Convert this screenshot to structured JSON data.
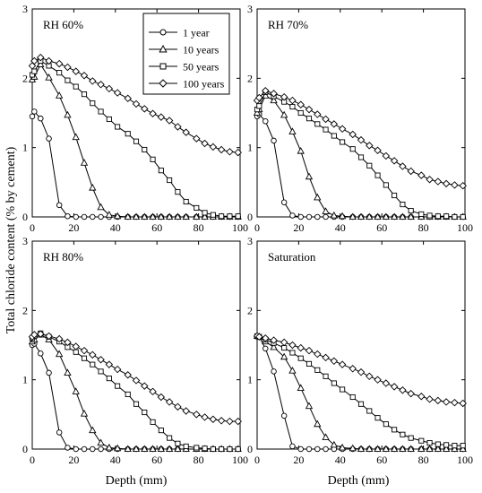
{
  "figure": {
    "ylabel": "Total chloride content (% by cement)",
    "xlabel": "Depth (mm)"
  },
  "legend": {
    "entries": [
      {
        "label": "1 year",
        "marker": "circle"
      },
      {
        "label": "10 years",
        "marker": "triangle"
      },
      {
        "label": "50 years",
        "marker": "square"
      },
      {
        "label": "100 years",
        "marker": "diamond"
      }
    ]
  },
  "chart_data": [
    {
      "type": "line",
      "title": "RH 60%",
      "xlabel": "Depth (mm)",
      "ylabel": "Total chloride content (% by cement)",
      "xlim": [
        0,
        100
      ],
      "ylim": [
        0,
        3
      ],
      "xticks": [
        0,
        20,
        40,
        60,
        80,
        100
      ],
      "yticks": [
        0,
        1,
        2,
        3
      ],
      "grid": false,
      "legend": "top-center",
      "series": [
        {
          "name": "1 year",
          "marker": "circle",
          "x": [
            0,
            1,
            4,
            8,
            13,
            17,
            21,
            25,
            29,
            33,
            37,
            41,
            46,
            50,
            54,
            58,
            62,
            66,
            70,
            74,
            79,
            83,
            87,
            91,
            95,
            99
          ],
          "y": [
            1.45,
            1.52,
            1.42,
            1.13,
            0.17,
            0.01,
            0,
            0,
            0,
            0,
            0,
            0,
            0,
            0,
            0,
            0,
            0,
            0,
            0,
            0,
            0,
            0,
            0,
            0,
            0,
            0
          ]
        },
        {
          "name": "10 years",
          "marker": "triangle",
          "x": [
            0,
            1,
            4,
            8,
            13,
            17,
            21,
            25,
            29,
            33,
            37,
            41,
            46,
            50,
            54,
            58,
            62,
            66,
            70,
            74,
            79,
            83,
            87,
            91,
            95,
            99
          ],
          "y": [
            1.98,
            2.02,
            2.2,
            2.01,
            1.75,
            1.47,
            1.15,
            0.78,
            0.42,
            0.14,
            0.03,
            0.01,
            0,
            0,
            0,
            0,
            0,
            0,
            0,
            0,
            0,
            0,
            0,
            0,
            0,
            0
          ]
        },
        {
          "name": "50 years",
          "marker": "square",
          "x": [
            0,
            1,
            4,
            8,
            13,
            17,
            21,
            25,
            29,
            33,
            37,
            41,
            46,
            50,
            54,
            58,
            62,
            66,
            70,
            74,
            79,
            83,
            87,
            91,
            95,
            99
          ],
          "y": [
            2.05,
            2.1,
            2.25,
            2.18,
            2.08,
            1.97,
            1.88,
            1.77,
            1.64,
            1.52,
            1.41,
            1.3,
            1.2,
            1.09,
            0.97,
            0.83,
            0.67,
            0.53,
            0.36,
            0.22,
            0.13,
            0.06,
            0.03,
            0.01,
            0.01,
            0.01
          ]
        },
        {
          "name": "100 years",
          "marker": "diamond",
          "x": [
            0,
            1,
            4,
            8,
            13,
            17,
            21,
            25,
            29,
            33,
            37,
            41,
            46,
            50,
            54,
            58,
            62,
            66,
            70,
            74,
            79,
            83,
            87,
            91,
            95,
            99
          ],
          "y": [
            2.18,
            2.25,
            2.3,
            2.25,
            2.21,
            2.16,
            2.1,
            2.04,
            1.96,
            1.91,
            1.85,
            1.79,
            1.71,
            1.63,
            1.56,
            1.49,
            1.44,
            1.39,
            1.3,
            1.22,
            1.13,
            1.06,
            1.01,
            0.97,
            0.94,
            0.93
          ]
        }
      ]
    },
    {
      "type": "line",
      "title": "RH 70%",
      "xlabel": "Depth (mm)",
      "ylabel": "",
      "xlim": [
        0,
        100
      ],
      "ylim": [
        0,
        3
      ],
      "xticks": [
        0,
        20,
        40,
        60,
        80,
        100
      ],
      "yticks": [
        0,
        1,
        2,
        3
      ],
      "grid": false,
      "series": [
        {
          "name": "1 year",
          "marker": "circle",
          "x": [
            0,
            1,
            4,
            8,
            13,
            17,
            21,
            25,
            29,
            33,
            37,
            41,
            46,
            50,
            54,
            58,
            62,
            66,
            70,
            74,
            79,
            83,
            87,
            91,
            95,
            99
          ],
          "y": [
            1.45,
            1.48,
            1.38,
            1.1,
            0.21,
            0.02,
            0,
            0,
            0,
            0,
            0,
            0,
            0,
            0,
            0,
            0,
            0,
            0,
            0,
            0,
            0,
            0,
            0,
            0,
            0,
            0
          ]
        },
        {
          "name": "10 years",
          "marker": "triangle",
          "x": [
            0,
            1,
            4,
            8,
            13,
            17,
            21,
            25,
            29,
            33,
            37,
            41,
            46,
            50,
            54,
            58,
            62,
            66,
            70,
            74,
            79,
            83,
            87,
            91,
            95,
            99
          ],
          "y": [
            1.5,
            1.55,
            1.75,
            1.68,
            1.47,
            1.23,
            0.95,
            0.58,
            0.28,
            0.08,
            0.02,
            0.01,
            0,
            0,
            0,
            0,
            0,
            0,
            0,
            0,
            0,
            0,
            0,
            0,
            0,
            0
          ]
        },
        {
          "name": "50 years",
          "marker": "square",
          "x": [
            0,
            1,
            4,
            8,
            13,
            17,
            21,
            25,
            29,
            33,
            37,
            41,
            46,
            50,
            54,
            58,
            62,
            66,
            70,
            74,
            79,
            83,
            87,
            91,
            95,
            99
          ],
          "y": [
            1.55,
            1.6,
            1.8,
            1.74,
            1.66,
            1.59,
            1.5,
            1.42,
            1.34,
            1.26,
            1.17,
            1.08,
            0.98,
            0.86,
            0.74,
            0.6,
            0.46,
            0.31,
            0.18,
            0.09,
            0.04,
            0.02,
            0.01,
            0.01,
            0,
            0
          ]
        },
        {
          "name": "100 years",
          "marker": "diamond",
          "x": [
            0,
            1,
            4,
            8,
            13,
            17,
            21,
            25,
            29,
            33,
            37,
            41,
            46,
            50,
            54,
            58,
            62,
            66,
            70,
            74,
            79,
            83,
            87,
            91,
            95,
            99
          ],
          "y": [
            1.68,
            1.72,
            1.82,
            1.78,
            1.73,
            1.68,
            1.62,
            1.55,
            1.48,
            1.41,
            1.34,
            1.27,
            1.19,
            1.11,
            1.03,
            0.96,
            0.88,
            0.81,
            0.73,
            0.66,
            0.6,
            0.54,
            0.51,
            0.48,
            0.46,
            0.45
          ]
        }
      ]
    },
    {
      "type": "line",
      "title": "RH 80%",
      "xlabel": "Depth (mm)",
      "ylabel": "Total chloride content (% by cement)",
      "xlim": [
        0,
        100
      ],
      "ylim": [
        0,
        3
      ],
      "xticks": [
        0,
        20,
        40,
        60,
        80,
        100
      ],
      "yticks": [
        0,
        1,
        2,
        3
      ],
      "grid": false,
      "series": [
        {
          "name": "1 year",
          "marker": "circle",
          "x": [
            0,
            1,
            4,
            8,
            13,
            17,
            21,
            25,
            29,
            33,
            37,
            41,
            46,
            50,
            54,
            58,
            62,
            66,
            70,
            74,
            79,
            83,
            87,
            91,
            95,
            99
          ],
          "y": [
            1.5,
            1.52,
            1.38,
            1.1,
            0.24,
            0.02,
            0,
            0,
            0,
            0,
            0,
            0,
            0,
            0,
            0,
            0,
            0,
            0,
            0,
            0,
            0,
            0,
            0,
            0,
            0,
            0
          ]
        },
        {
          "name": "10 years",
          "marker": "triangle",
          "x": [
            0,
            1,
            4,
            8,
            13,
            17,
            21,
            25,
            29,
            33,
            37,
            41,
            46,
            50,
            54,
            58,
            62,
            66,
            70,
            74,
            79,
            83,
            87,
            91,
            95,
            99
          ],
          "y": [
            1.55,
            1.58,
            1.65,
            1.58,
            1.37,
            1.1,
            0.83,
            0.51,
            0.27,
            0.09,
            0.02,
            0.01,
            0,
            0,
            0,
            0,
            0,
            0,
            0,
            0,
            0,
            0,
            0,
            0,
            0,
            0
          ]
        },
        {
          "name": "50 years",
          "marker": "square",
          "x": [
            0,
            1,
            4,
            8,
            13,
            17,
            21,
            25,
            29,
            33,
            37,
            41,
            46,
            50,
            54,
            58,
            62,
            66,
            70,
            74,
            79,
            83,
            87,
            91,
            95,
            99
          ],
          "y": [
            1.6,
            1.63,
            1.67,
            1.62,
            1.55,
            1.47,
            1.4,
            1.31,
            1.22,
            1.12,
            1.02,
            0.91,
            0.79,
            0.65,
            0.53,
            0.39,
            0.27,
            0.16,
            0.08,
            0.04,
            0.02,
            0.01,
            0,
            0,
            0,
            0
          ]
        },
        {
          "name": "100 years",
          "marker": "diamond",
          "x": [
            0,
            1,
            4,
            8,
            13,
            17,
            21,
            25,
            29,
            33,
            37,
            41,
            46,
            50,
            54,
            58,
            62,
            66,
            70,
            74,
            79,
            83,
            87,
            91,
            95,
            99
          ],
          "y": [
            1.62,
            1.65,
            1.66,
            1.63,
            1.59,
            1.54,
            1.48,
            1.42,
            1.36,
            1.29,
            1.22,
            1.15,
            1.07,
            0.99,
            0.91,
            0.83,
            0.75,
            0.68,
            0.61,
            0.55,
            0.5,
            0.46,
            0.43,
            0.41,
            0.4,
            0.4
          ]
        }
      ]
    },
    {
      "type": "line",
      "title": "Saturation",
      "xlabel": "Depth (mm)",
      "ylabel": "",
      "xlim": [
        0,
        100
      ],
      "ylim": [
        0,
        3
      ],
      "xticks": [
        0,
        20,
        40,
        60,
        80,
        100
      ],
      "yticks": [
        0,
        1,
        2,
        3
      ],
      "grid": false,
      "series": [
        {
          "name": "1 year",
          "marker": "circle",
          "x": [
            0,
            1,
            4,
            8,
            13,
            17,
            21,
            25,
            29,
            33,
            37,
            41,
            46,
            50,
            54,
            58,
            62,
            66,
            70,
            74,
            79,
            83,
            87,
            91,
            95,
            99
          ],
          "y": [
            1.63,
            1.62,
            1.45,
            1.12,
            0.48,
            0.04,
            0,
            0,
            0,
            0,
            0,
            0,
            0,
            0,
            0,
            0,
            0,
            0,
            0,
            0,
            0,
            0,
            0,
            0,
            0,
            0
          ]
        },
        {
          "name": "10 years",
          "marker": "triangle",
          "x": [
            0,
            1,
            4,
            8,
            13,
            17,
            21,
            25,
            29,
            33,
            37,
            41,
            46,
            50,
            54,
            58,
            62,
            66,
            70,
            74,
            79,
            83,
            87,
            91,
            95,
            99
          ],
          "y": [
            1.63,
            1.62,
            1.55,
            1.47,
            1.33,
            1.13,
            0.88,
            0.62,
            0.36,
            0.17,
            0.06,
            0.02,
            0.01,
            0,
            0,
            0,
            0,
            0,
            0,
            0,
            0,
            0,
            0,
            0,
            0,
            0
          ]
        },
        {
          "name": "50 years",
          "marker": "square",
          "x": [
            0,
            1,
            4,
            8,
            13,
            17,
            21,
            25,
            29,
            33,
            37,
            41,
            46,
            50,
            54,
            58,
            62,
            66,
            70,
            74,
            79,
            83,
            87,
            91,
            95,
            99
          ],
          "y": [
            1.63,
            1.62,
            1.58,
            1.53,
            1.46,
            1.39,
            1.31,
            1.23,
            1.14,
            1.05,
            0.95,
            0.86,
            0.75,
            0.65,
            0.55,
            0.45,
            0.36,
            0.28,
            0.21,
            0.16,
            0.12,
            0.09,
            0.07,
            0.06,
            0.05,
            0.05
          ]
        },
        {
          "name": "100 years",
          "marker": "diamond",
          "x": [
            0,
            1,
            4,
            8,
            13,
            17,
            21,
            25,
            29,
            33,
            37,
            41,
            46,
            50,
            54,
            58,
            62,
            66,
            70,
            74,
            79,
            83,
            87,
            91,
            95,
            99
          ],
          "y": [
            1.63,
            1.62,
            1.6,
            1.57,
            1.54,
            1.5,
            1.46,
            1.42,
            1.37,
            1.32,
            1.27,
            1.22,
            1.16,
            1.11,
            1.05,
            1.0,
            0.95,
            0.9,
            0.85,
            0.8,
            0.76,
            0.72,
            0.7,
            0.68,
            0.67,
            0.66
          ]
        }
      ]
    }
  ]
}
